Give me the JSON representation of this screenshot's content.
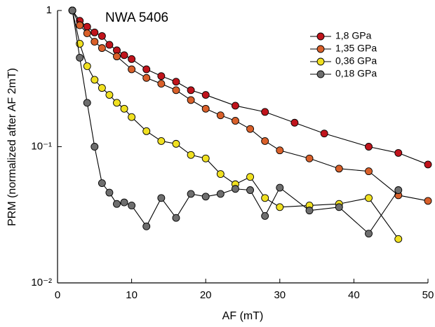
{
  "chart_data": {
    "type": "line",
    "title": "NWA 5406",
    "xlabel": "AF (mT)",
    "ylabel": "PRM (normalized after AF 2mT)",
    "xlim": [
      0,
      50
    ],
    "xticks": [
      0,
      10,
      20,
      30,
      40,
      50
    ],
    "ylim": [
      0.01,
      1
    ],
    "yticks": [
      {
        "value": 0.01,
        "label": "10⁻²"
      },
      {
        "value": 0.1,
        "label": "10⁻¹"
      },
      1
    ],
    "log_y": true,
    "legend": "upper right",
    "series": [
      {
        "name": "1,8 GPa",
        "color": "#c0141c",
        "x": [
          2,
          3,
          4,
          5,
          6,
          7,
          8,
          9,
          10,
          12,
          14,
          16,
          18,
          20,
          24,
          28,
          32,
          36,
          42,
          46,
          50
        ],
        "values": [
          1.0,
          0.84,
          0.76,
          0.69,
          0.65,
          0.56,
          0.51,
          0.47,
          0.44,
          0.37,
          0.33,
          0.3,
          0.26,
          0.24,
          0.2,
          0.18,
          0.15,
          0.125,
          0.1,
          0.09,
          0.074
        ]
      },
      {
        "name": "1,35 GPa",
        "color": "#d9602a",
        "x": [
          2,
          3,
          4,
          5,
          6,
          8,
          10,
          12,
          14,
          16,
          18,
          20,
          22,
          24,
          26,
          28,
          30,
          34,
          38,
          42,
          46,
          50
        ],
        "values": [
          1.0,
          0.78,
          0.68,
          0.59,
          0.53,
          0.46,
          0.37,
          0.32,
          0.29,
          0.26,
          0.22,
          0.19,
          0.17,
          0.155,
          0.135,
          0.11,
          0.094,
          0.082,
          0.069,
          0.066,
          0.044,
          0.04
        ]
      },
      {
        "name": "0,36 GPa",
        "color": "#f0e020",
        "x": [
          2,
          3,
          4,
          5,
          6,
          7,
          8,
          9,
          10,
          12,
          14,
          16,
          18,
          20,
          22,
          24,
          26,
          28,
          30,
          34,
          38,
          42,
          46
        ],
        "values": [
          1.0,
          0.57,
          0.39,
          0.31,
          0.27,
          0.24,
          0.21,
          0.19,
          0.165,
          0.13,
          0.11,
          0.105,
          0.087,
          0.082,
          0.063,
          0.053,
          0.06,
          0.042,
          0.036,
          0.037,
          0.038,
          0.042,
          0.021
        ]
      },
      {
        "name": "0,18 GPa",
        "color": "#6e6e6e",
        "x": [
          2,
          3,
          4,
          5,
          6,
          7,
          8,
          9,
          10,
          12,
          14,
          16,
          18,
          20,
          22,
          24,
          26,
          28,
          30,
          34,
          38,
          42,
          46
        ],
        "values": [
          1.0,
          0.45,
          0.21,
          0.1,
          0.054,
          0.046,
          0.038,
          0.039,
          0.037,
          0.026,
          0.042,
          0.03,
          0.045,
          0.043,
          0.045,
          0.049,
          0.048,
          0.031,
          0.05,
          0.034,
          0.036,
          0.023,
          0.048
        ]
      }
    ]
  }
}
